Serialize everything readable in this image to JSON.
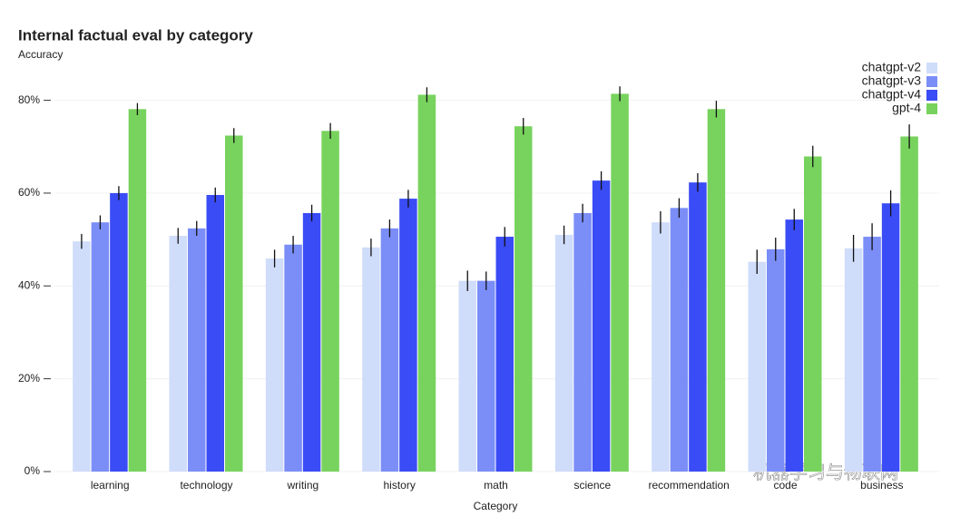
{
  "chart_data": {
    "type": "bar",
    "title": "Internal factual eval by category",
    "y_label": "Accuracy",
    "x_label": "Category",
    "categories": [
      "learning",
      "technology",
      "writing",
      "history",
      "math",
      "science",
      "recommendation",
      "code",
      "business"
    ],
    "series": [
      {
        "name": "chatgpt-v2",
        "color": "#cfdcfa",
        "values": [
          49.6,
          50.8,
          45.9,
          48.3,
          41.1,
          51.0,
          53.7,
          45.2,
          48.1
        ],
        "errors": [
          1.6,
          1.7,
          1.9,
          1.9,
          2.2,
          2.0,
          2.4,
          2.6,
          2.9
        ]
      },
      {
        "name": "chatgpt-v3",
        "color": "#7b8ef7",
        "values": [
          53.7,
          52.4,
          48.9,
          52.4,
          41.1,
          55.7,
          56.8,
          47.9,
          50.6
        ],
        "errors": [
          1.5,
          1.6,
          1.9,
          1.9,
          2.0,
          2.0,
          2.1,
          2.5,
          2.9
        ]
      },
      {
        "name": "chatgpt-v4",
        "color": "#3a4cf5",
        "values": [
          60.0,
          59.6,
          55.7,
          58.8,
          50.6,
          62.7,
          62.3,
          54.3,
          57.8
        ],
        "errors": [
          1.5,
          1.6,
          1.8,
          1.9,
          2.1,
          2.0,
          2.0,
          2.3,
          2.8
        ]
      },
      {
        "name": "gpt-4",
        "color": "#77d35d",
        "values": [
          78.1,
          72.4,
          73.4,
          81.2,
          74.4,
          81.4,
          78.1,
          67.9,
          72.2
        ],
        "errors": [
          1.3,
          1.6,
          1.7,
          1.6,
          1.8,
          1.6,
          1.8,
          2.3,
          2.6
        ]
      }
    ],
    "ylim": [
      0,
      85
    ],
    "yticks": [
      {
        "value": 0,
        "label": "0%"
      },
      {
        "value": 20,
        "label": "20%"
      },
      {
        "value": 40,
        "label": "40%"
      },
      {
        "value": 60,
        "label": "60%"
      },
      {
        "value": 80,
        "label": "80%"
      }
    ],
    "grid": true,
    "legend": "top-right",
    "watermark": "机器学习与物联网"
  }
}
